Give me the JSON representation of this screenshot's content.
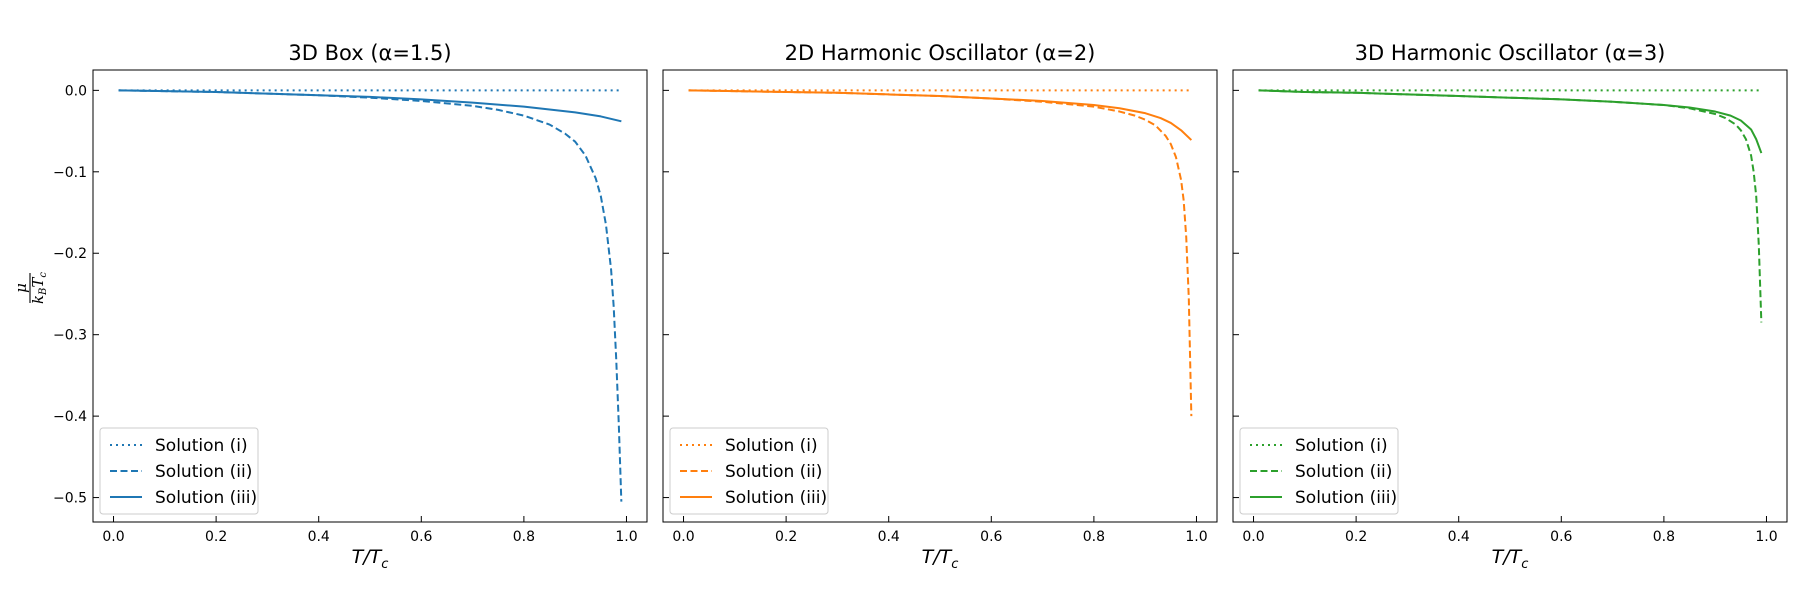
{
  "figure": {
    "ylabel": {
      "num": "μ",
      "den_k": "k",
      "den_k_sub": "B",
      "den_T": "T",
      "den_T_sub": "c"
    }
  },
  "chart_data": [
    {
      "type": "line",
      "title": "3D Box (α=1.5)",
      "xlabel": "T/T",
      "xlabel_sub": "c",
      "xlim": [
        -0.04,
        1.04
      ],
      "ylim": [
        -0.53,
        0.025
      ],
      "xticks": [
        0.0,
        0.2,
        0.4,
        0.6,
        0.8,
        1.0
      ],
      "xtick_labels": [
        "0.0",
        "0.2",
        "0.4",
        "0.6",
        "0.8",
        "1.0"
      ],
      "yticks": [
        0.0,
        -0.1,
        -0.2,
        -0.3,
        -0.4,
        -0.5
      ],
      "ytick_labels": [
        "0.0",
        "−0.1",
        "−0.2",
        "−0.3",
        "−0.4",
        "−0.5"
      ],
      "show_yticklabels": true,
      "color": "#1f77b4",
      "legend_position": "lower-left",
      "series": [
        {
          "name": "Solution (i)",
          "style": "dotted",
          "x": [
            0.01,
            0.99
          ],
          "y": [
            0.0,
            0.0
          ]
        },
        {
          "name": "Solution (ii)",
          "style": "dashed",
          "x": [
            0.01,
            0.1,
            0.2,
            0.3,
            0.4,
            0.5,
            0.6,
            0.7,
            0.75,
            0.8,
            0.85,
            0.88,
            0.9,
            0.92,
            0.94,
            0.95,
            0.96,
            0.97,
            0.975,
            0.98,
            0.985,
            0.99
          ],
          "y": [
            0.0,
            -0.001,
            -0.002,
            -0.004,
            -0.006,
            -0.009,
            -0.013,
            -0.019,
            -0.024,
            -0.031,
            -0.042,
            -0.053,
            -0.063,
            -0.08,
            -0.108,
            -0.13,
            -0.165,
            -0.22,
            -0.265,
            -0.33,
            -0.41,
            -0.505
          ]
        },
        {
          "name": "Solution (iii)",
          "style": "solid",
          "x": [
            0.01,
            0.1,
            0.2,
            0.3,
            0.4,
            0.5,
            0.6,
            0.7,
            0.8,
            0.9,
            0.95,
            0.99
          ],
          "y": [
            0.0,
            -0.001,
            -0.002,
            -0.004,
            -0.006,
            -0.008,
            -0.011,
            -0.015,
            -0.02,
            -0.027,
            -0.032,
            -0.038
          ]
        }
      ]
    },
    {
      "type": "line",
      "title": "2D Harmonic Oscillator (α=2)",
      "xlabel": "T/T",
      "xlabel_sub": "c",
      "xlim": [
        -0.04,
        1.04
      ],
      "ylim": [
        -0.53,
        0.025
      ],
      "xticks": [
        0.0,
        0.2,
        0.4,
        0.6,
        0.8,
        1.0
      ],
      "xtick_labels": [
        "0.0",
        "0.2",
        "0.4",
        "0.6",
        "0.8",
        "1.0"
      ],
      "yticks": [
        0.0,
        -0.1,
        -0.2,
        -0.3,
        -0.4,
        -0.5
      ],
      "ytick_labels": [],
      "show_yticklabels": false,
      "color": "#ff7f0e",
      "legend_position": "lower-left",
      "series": [
        {
          "name": "Solution (i)",
          "style": "dotted",
          "x": [
            0.01,
            0.99
          ],
          "y": [
            0.0,
            0.0
          ]
        },
        {
          "name": "Solution (ii)",
          "style": "dashed",
          "x": [
            0.01,
            0.1,
            0.2,
            0.3,
            0.4,
            0.5,
            0.6,
            0.7,
            0.8,
            0.85,
            0.88,
            0.9,
            0.92,
            0.94,
            0.95,
            0.96,
            0.97,
            0.975,
            0.98,
            0.985,
            0.99
          ],
          "y": [
            0.0,
            -0.001,
            -0.002,
            -0.003,
            -0.005,
            -0.007,
            -0.01,
            -0.014,
            -0.02,
            -0.026,
            -0.031,
            -0.036,
            -0.043,
            -0.056,
            -0.066,
            -0.082,
            -0.11,
            -0.135,
            -0.18,
            -0.255,
            -0.4
          ]
        },
        {
          "name": "Solution (iii)",
          "style": "solid",
          "x": [
            0.01,
            0.1,
            0.2,
            0.3,
            0.4,
            0.5,
            0.6,
            0.7,
            0.8,
            0.85,
            0.9,
            0.93,
            0.95,
            0.97,
            0.99
          ],
          "y": [
            0.0,
            -0.001,
            -0.002,
            -0.003,
            -0.005,
            -0.007,
            -0.01,
            -0.013,
            -0.018,
            -0.022,
            -0.028,
            -0.034,
            -0.04,
            -0.049,
            -0.061
          ]
        }
      ]
    },
    {
      "type": "line",
      "title": "3D Harmonic Oscillator (α=3)",
      "xlabel": "T/T",
      "xlabel_sub": "c",
      "xlim": [
        -0.04,
        1.04
      ],
      "ylim": [
        -0.53,
        0.025
      ],
      "xticks": [
        0.0,
        0.2,
        0.4,
        0.6,
        0.8,
        1.0
      ],
      "xtick_labels": [
        "0.0",
        "0.2",
        "0.4",
        "0.6",
        "0.8",
        "1.0"
      ],
      "yticks": [
        0.0,
        -0.1,
        -0.2,
        -0.3,
        -0.4,
        -0.5
      ],
      "ytick_labels": [],
      "show_yticklabels": false,
      "color": "#2ca02c",
      "legend_position": "lower-left",
      "series": [
        {
          "name": "Solution (i)",
          "style": "dotted",
          "x": [
            0.01,
            0.99
          ],
          "y": [
            0.0,
            0.0
          ]
        },
        {
          "name": "Solution (ii)",
          "style": "dashed",
          "x": [
            0.01,
            0.1,
            0.2,
            0.3,
            0.4,
            0.5,
            0.6,
            0.7,
            0.8,
            0.85,
            0.9,
            0.92,
            0.94,
            0.95,
            0.96,
            0.97,
            0.975,
            0.98,
            0.985,
            0.99
          ],
          "y": [
            0.0,
            -0.002,
            -0.003,
            -0.005,
            -0.007,
            -0.009,
            -0.011,
            -0.014,
            -0.018,
            -0.022,
            -0.029,
            -0.034,
            -0.042,
            -0.049,
            -0.06,
            -0.08,
            -0.1,
            -0.13,
            -0.19,
            -0.285
          ]
        },
        {
          "name": "Solution (iii)",
          "style": "solid",
          "x": [
            0.01,
            0.1,
            0.2,
            0.3,
            0.4,
            0.5,
            0.6,
            0.7,
            0.8,
            0.85,
            0.9,
            0.93,
            0.95,
            0.97,
            0.98,
            0.99
          ],
          "y": [
            0.0,
            -0.002,
            -0.003,
            -0.005,
            -0.007,
            -0.009,
            -0.011,
            -0.014,
            -0.018,
            -0.021,
            -0.026,
            -0.031,
            -0.037,
            -0.048,
            -0.06,
            -0.077
          ]
        }
      ]
    }
  ]
}
